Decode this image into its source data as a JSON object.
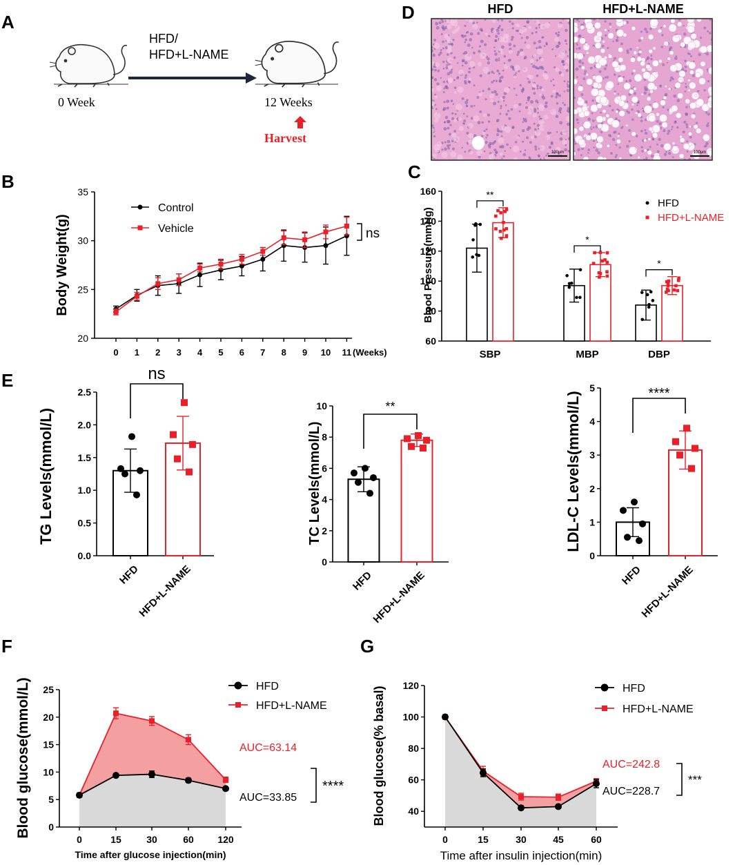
{
  "panels": {
    "A": "A",
    "B": "B",
    "C": "C",
    "D": "D",
    "E": "E",
    "F": "F",
    "G": "G"
  },
  "colors": {
    "hfd": "#000000",
    "lname": "#e8202a",
    "grey_fill": "#d9d9d9",
    "red_fill": "#f4a0a0",
    "tissue": "#e6a6d2"
  },
  "panel_a": {
    "treatment_line1": "HFD/",
    "treatment_line2": "HFD+L-NAME",
    "week0": "0 Week",
    "week12": "12 Weeks",
    "harvest": "Harvest"
  },
  "panel_d": {
    "title_left": "HFD",
    "title_right": "HFD+L-NAME",
    "scale_left": "100μm",
    "scale_right": "100μm"
  },
  "chart_data": [
    {
      "id": "B",
      "type": "line",
      "x": [
        0,
        1,
        2,
        3,
        4,
        5,
        6,
        7,
        8,
        9,
        10,
        11
      ],
      "x_tick_labels": [
        "0",
        "1",
        "2",
        "3",
        "4",
        "5",
        "6",
        "7",
        "8",
        "9",
        "10",
        "11"
      ],
      "x_suffix": "(Weeks)",
      "ylabel": "Body Weight(g)",
      "ylim": [
        20,
        35
      ],
      "yticks": [
        20,
        25,
        30,
        35
      ],
      "series": [
        {
          "name": "Control",
          "color": "#000000",
          "marker": "circle",
          "values": [
            23.0,
            24.4,
            25.4,
            25.6,
            26.5,
            27.0,
            27.4,
            28.1,
            29.5,
            29.3,
            29.5,
            30.5
          ],
          "errors": [
            0.3,
            0.6,
            1.0,
            1.0,
            1.2,
            1.0,
            1.0,
            1.2,
            1.6,
            1.5,
            1.9,
            2.0
          ]
        },
        {
          "name": "Vehicle",
          "color": "#e8202a",
          "marker": "square",
          "values": [
            22.7,
            24.3,
            25.6,
            26.0,
            27.2,
            27.6,
            28.1,
            28.9,
            30.3,
            30.1,
            30.9,
            31.5
          ],
          "errors": [
            0.3,
            0.4,
            0.6,
            0.6,
            0.4,
            0.5,
            0.5,
            0.4,
            0.7,
            0.8,
            0.7,
            0.9
          ]
        }
      ],
      "annotation": "ns",
      "legend_position": "top-left"
    },
    {
      "id": "C",
      "type": "bar",
      "categories": [
        "SBP",
        "MBP",
        "DBP"
      ],
      "ylabel": "Blood Pressure(mmHg)",
      "ylim": [
        60,
        160
      ],
      "yticks": [
        60,
        80,
        100,
        120,
        140,
        160
      ],
      "series": [
        {
          "name": "HFD",
          "color": "#000000",
          "values": [
            122,
            97,
            84
          ],
          "errors": [
            16,
            11,
            10
          ]
        },
        {
          "name": "HFD+L-NAME",
          "color": "#e8202a",
          "values": [
            139,
            111,
            97
          ],
          "errors": [
            10,
            8,
            6
          ]
        }
      ],
      "significance": [
        "**",
        "*",
        "*"
      ],
      "legend_position": "top-right"
    },
    {
      "id": "E1",
      "type": "bar",
      "categories": [
        "HFD",
        "HFD+L-NAME"
      ],
      "ylabel": "TG Levels(mmol/L)",
      "ylim": [
        0,
        2.5
      ],
      "yticks": [
        0.0,
        0.5,
        1.0,
        1.5,
        2.0,
        2.5
      ],
      "ytick_labels": [
        "0.0",
        "0.5",
        "1.0",
        "1.5",
        "2.0",
        "2.5"
      ],
      "values": [
        1.3,
        1.72
      ],
      "errors": [
        0.33,
        0.41
      ],
      "points": [
        [
          1.82,
          1.33,
          1.3,
          1.25,
          0.93
        ],
        [
          2.34,
          1.85,
          1.7,
          1.48,
          1.28
        ]
      ],
      "significance": "ns"
    },
    {
      "id": "E2",
      "type": "bar",
      "categories": [
        "HFD",
        "HFD+L-NAME"
      ],
      "ylabel": "TC Levels(mmol/L)",
      "ylim": [
        0,
        10
      ],
      "yticks": [
        0,
        2,
        4,
        6,
        8,
        10
      ],
      "ytick_labels": [
        "0",
        "2",
        "4",
        "6",
        "8",
        "10"
      ],
      "values": [
        5.3,
        7.8
      ],
      "errors": [
        0.8,
        0.4
      ],
      "points": [
        [
          6.0,
          5.7,
          5.4,
          5.1,
          4.4
        ],
        [
          8.1,
          7.9,
          7.8,
          7.4,
          7.3
        ]
      ],
      "significance": "**"
    },
    {
      "id": "E3",
      "type": "bar",
      "categories": [
        "HFD",
        "HFD+L-NAME"
      ],
      "ylabel": "LDL-C Levels(mmol/L)",
      "ylim": [
        0,
        5
      ],
      "yticks": [
        0,
        1,
        2,
        3,
        4,
        5
      ],
      "ytick_labels": [
        "0",
        "1",
        "2",
        "3",
        "4",
        "5"
      ],
      "values": [
        1.0,
        3.15
      ],
      "errors": [
        0.43,
        0.57
      ],
      "points": [
        [
          1.6,
          1.35,
          0.95,
          0.55,
          0.45
        ],
        [
          3.8,
          3.4,
          3.2,
          3.0,
          2.6
        ]
      ],
      "significance": "****"
    },
    {
      "id": "F",
      "type": "area",
      "x_tick_labels": [
        "0",
        "15",
        "30",
        "60",
        "120"
      ],
      "xlabel": "Time after glucose injection(min)",
      "ylabel": "Blood glucose(mmol/L)",
      "ylim": [
        0,
        25
      ],
      "yticks": [
        0,
        5,
        10,
        15,
        20,
        25
      ],
      "series": [
        {
          "name": "HFD",
          "color": "#000000",
          "marker": "circle",
          "values": [
            5.8,
            9.4,
            9.6,
            8.5,
            7.0
          ],
          "errors": [
            0.2,
            0.3,
            0.6,
            0.4,
            0.3
          ]
        },
        {
          "name": "HFD+L-NAME",
          "color": "#e8202a",
          "marker": "square",
          "values": [
            5.8,
            20.7,
            19.3,
            15.9,
            8.6
          ],
          "errors": [
            0.2,
            1.0,
            0.8,
            0.9,
            0.5
          ]
        }
      ],
      "auc_labels": [
        "AUC=63.14",
        "AUC=33.85"
      ],
      "significance": "****",
      "legend_position": "top-right"
    },
    {
      "id": "G",
      "type": "area",
      "x_tick_labels": [
        "0",
        "15",
        "30",
        "45",
        "60"
      ],
      "xlabel": "Time after insulin injection(min)",
      "ylabel": "Blood glucose(% basal)",
      "ylim": [
        30,
        120
      ],
      "yticks": [
        40,
        60,
        80,
        100,
        120
      ],
      "series": [
        {
          "name": "HFD",
          "color": "#000000",
          "marker": "circle",
          "values": [
            100,
            64.5,
            42.2,
            43.0,
            57.6
          ],
          "errors": [
            0,
            2.5,
            1.2,
            1.2,
            2.6
          ]
        },
        {
          "name": "HFD+L-NAME",
          "color": "#e8202a",
          "marker": "square",
          "values": [
            100,
            65.6,
            49.3,
            49.0,
            59.2
          ],
          "errors": [
            0,
            3.0,
            2.2,
            2.0,
            1.6
          ]
        }
      ],
      "auc_labels": [
        "AUC=242.8",
        "AUC=228.7"
      ],
      "significance": "***",
      "legend_position": "top-right"
    }
  ]
}
